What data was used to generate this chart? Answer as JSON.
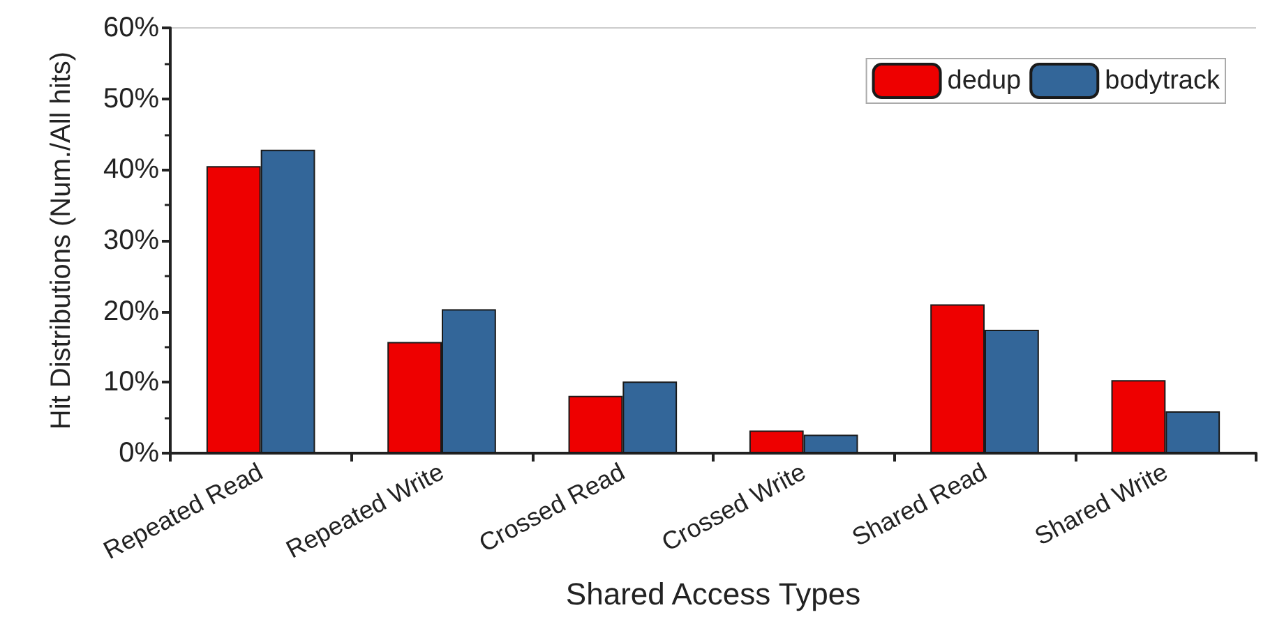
{
  "chart_data": {
    "type": "bar",
    "xlabel": "Shared Access Types",
    "ylabel": "Hit Distributions (Num./All hits)",
    "categories": [
      "Repeated Read",
      "Repeated Write",
      "Crossed Read",
      "Crossed Write",
      "Shared Read",
      "Shared Write"
    ],
    "series": [
      {
        "name": "dedup",
        "color": "#ee0000",
        "values": [
          40.5,
          15.7,
          8.1,
          3.2,
          21.0,
          10.3
        ]
      },
      {
        "name": "bodytrack",
        "color": "#336699",
        "values": [
          42.8,
          20.3,
          10.1,
          2.6,
          17.4,
          5.9
        ]
      }
    ],
    "ylim": [
      0,
      60
    ],
    "yticks": [
      {
        "value": 0,
        "label": "0%"
      },
      {
        "value": 10,
        "label": "10%"
      },
      {
        "value": 20,
        "label": "20%"
      },
      {
        "value": 30,
        "label": "30%"
      },
      {
        "value": 40,
        "label": "40%"
      },
      {
        "value": 50,
        "label": "50%"
      },
      {
        "value": 60,
        "label": "60%"
      }
    ],
    "grid": false,
    "legend": "top right"
  }
}
